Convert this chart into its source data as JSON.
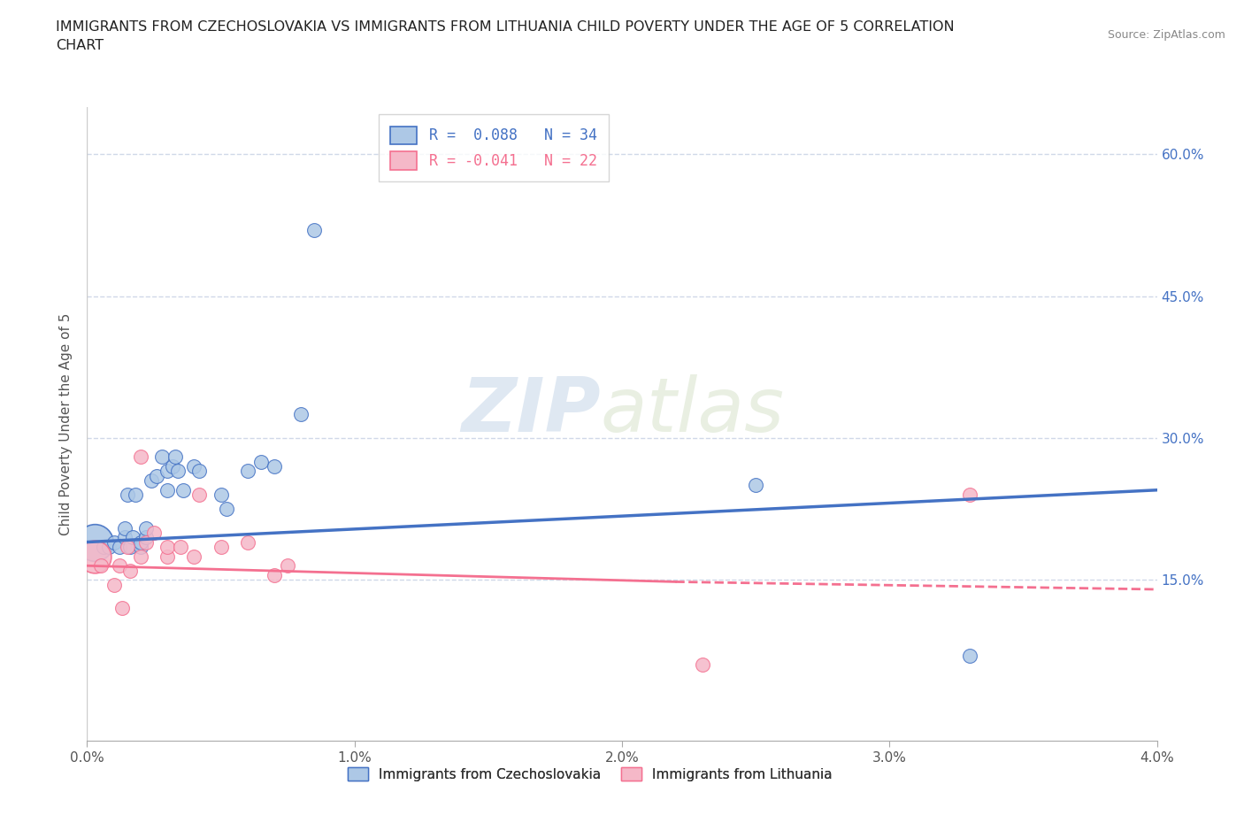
{
  "title": "IMMIGRANTS FROM CZECHOSLOVAKIA VS IMMIGRANTS FROM LITHUANIA CHILD POVERTY UNDER THE AGE OF 5 CORRELATION\nCHART",
  "source": "Source: ZipAtlas.com",
  "ylabel": "Child Poverty Under the Age of 5",
  "xlabel_ticks": [
    "0.0%",
    "1.0%",
    "2.0%",
    "3.0%",
    "4.0%"
  ],
  "ylabel_ticks_right": [
    "15.0%",
    "30.0%",
    "45.0%",
    "60.0%"
  ],
  "xlim": [
    0.0,
    0.04
  ],
  "ylim": [
    -0.02,
    0.65
  ],
  "ytick_positions": [
    0.0,
    0.15,
    0.3,
    0.45,
    0.6
  ],
  "ytick_right_positions": [
    0.15,
    0.3,
    0.45,
    0.6
  ],
  "xtick_positions": [
    0.0,
    0.01,
    0.02,
    0.03,
    0.04
  ],
  "color_czecho": "#adc8e6",
  "color_lithuania": "#f5b8c8",
  "color_czecho_line": "#4472c4",
  "color_lithuania_line": "#f47090",
  "watermark_zip": "ZIP",
  "watermark_atlas": "atlas",
  "background_color": "#ffffff",
  "grid_color": "#d0d8e8",
  "czecho_scatter_x": [
    0.0003,
    0.0006,
    0.0008,
    0.001,
    0.0012,
    0.0014,
    0.0014,
    0.0015,
    0.0016,
    0.0017,
    0.0018,
    0.002,
    0.002,
    0.0022,
    0.0022,
    0.0024,
    0.0026,
    0.0028,
    0.003,
    0.003,
    0.0032,
    0.0033,
    0.0034,
    0.0036,
    0.004,
    0.0042,
    0.005,
    0.0052,
    0.006,
    0.0065,
    0.007,
    0.008,
    0.025,
    0.033
  ],
  "czecho_scatter_y": [
    0.19,
    0.185,
    0.185,
    0.19,
    0.185,
    0.195,
    0.205,
    0.24,
    0.185,
    0.195,
    0.24,
    0.185,
    0.19,
    0.195,
    0.205,
    0.255,
    0.26,
    0.28,
    0.245,
    0.265,
    0.27,
    0.28,
    0.265,
    0.245,
    0.27,
    0.265,
    0.24,
    0.225,
    0.265,
    0.275,
    0.27,
    0.325,
    0.25,
    0.07
  ],
  "czecho_large_x": [
    0.0003
  ],
  "czecho_large_y": [
    0.19
  ],
  "czecho_outlier_x": [
    0.0085
  ],
  "czecho_outlier_y": [
    0.52
  ],
  "lithuania_scatter_x": [
    0.0003,
    0.0005,
    0.001,
    0.0012,
    0.0013,
    0.0015,
    0.0016,
    0.002,
    0.002,
    0.0022,
    0.0025,
    0.003,
    0.003,
    0.0035,
    0.004,
    0.0042,
    0.005,
    0.006,
    0.007,
    0.0075,
    0.023,
    0.033
  ],
  "lithuania_scatter_y": [
    0.175,
    0.165,
    0.145,
    0.165,
    0.12,
    0.185,
    0.16,
    0.175,
    0.28,
    0.19,
    0.2,
    0.175,
    0.185,
    0.185,
    0.175,
    0.24,
    0.185,
    0.19,
    0.155,
    0.165,
    0.06,
    0.24
  ]
}
